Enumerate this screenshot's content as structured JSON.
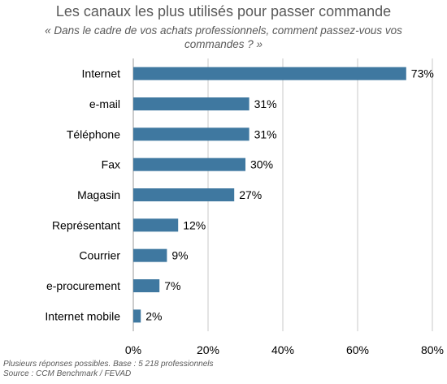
{
  "header": {
    "title": "Les canaux les plus utilisés pour passer commande",
    "subtitle": "« Dans le cadre de vos achats professionnels, comment passez-vous vos commandes ? »"
  },
  "chart_data": {
    "type": "bar",
    "orientation": "horizontal",
    "categories": [
      "Internet",
      "e-mail",
      "Téléphone",
      "Fax",
      "Magasin",
      "Représentant",
      "Courrier",
      "e-procurement",
      "Internet mobile"
    ],
    "values": [
      73,
      31,
      31,
      30,
      27,
      12,
      9,
      7,
      2
    ],
    "value_labels": [
      "73%",
      "31%",
      "31%",
      "30%",
      "27%",
      "12%",
      "9%",
      "7%",
      "2%"
    ],
    "x_ticks": [
      0,
      20,
      40,
      60,
      80
    ],
    "x_tick_labels": [
      "0%",
      "20%",
      "40%",
      "60%",
      "80%"
    ],
    "xlim": [
      0,
      80
    ],
    "grid": "vertical",
    "bar_color": "#3f78a0",
    "xlabel": "",
    "ylabel": ""
  },
  "footnote": {
    "line1": "Plusieurs réponses possibles. Base  : 5 218 professionnels",
    "line2": "Source : CCM Benchmark / FEVAD"
  }
}
